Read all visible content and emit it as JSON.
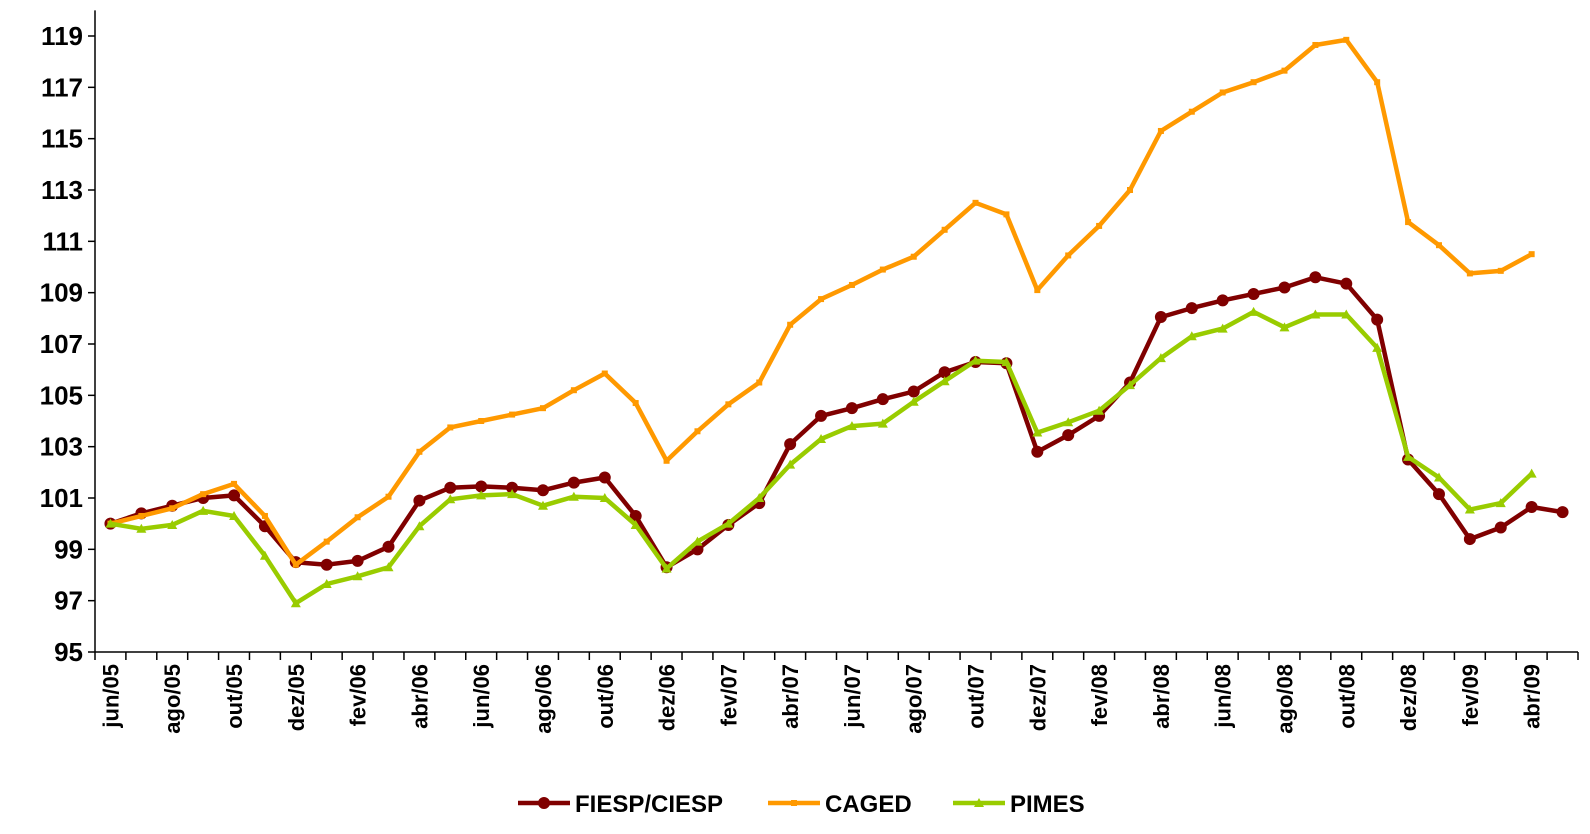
{
  "chart_data": {
    "type": "line",
    "categories": [
      "jun/05",
      null,
      "ago/05",
      null,
      "out/05",
      null,
      "dez/05",
      null,
      "fev/06",
      null,
      "abr/06",
      null,
      "jun/06",
      null,
      "ago/06",
      null,
      "out/06",
      null,
      "dez/06",
      null,
      "fev/07",
      null,
      "abr/07",
      null,
      "jun/07",
      null,
      "ago/07",
      null,
      "out/07",
      null,
      "dez/07",
      null,
      "fev/08",
      null,
      "abr/08",
      null,
      "jun/08",
      null,
      "ago/08",
      null,
      "out/08",
      null,
      "dez/08",
      null,
      "fev/09",
      null,
      "abr/09",
      null
    ],
    "series": [
      {
        "name": "FIESP/CIESP",
        "color": "#800000",
        "marker": "circle",
        "values": [
          100,
          100.4,
          100.7,
          101.0,
          101.1,
          99.9,
          98.5,
          98.4,
          98.55,
          99.1,
          100.9,
          101.4,
          101.45,
          101.4,
          101.3,
          101.6,
          101.8,
          100.3,
          98.3,
          99.0,
          99.95,
          100.8,
          103.1,
          104.2,
          104.5,
          104.85,
          105.15,
          105.9,
          106.3,
          106.25,
          102.8,
          103.45,
          104.2,
          105.5,
          108.05,
          108.4,
          108.7,
          108.95,
          109.2,
          109.6,
          109.35,
          107.95,
          102.5,
          101.15,
          99.4,
          99.85,
          100.65,
          100.45
        ]
      },
      {
        "name": "CAGED",
        "color": "#ff9900",
        "marker": "square",
        "values": [
          100,
          100.3,
          100.6,
          101.15,
          101.55,
          100.3,
          98.4,
          99.3,
          100.25,
          101.05,
          102.8,
          103.75,
          104.0,
          104.25,
          104.5,
          105.2,
          105.85,
          104.7,
          102.45,
          103.6,
          104.65,
          105.5,
          107.75,
          108.75,
          109.3,
          109.9,
          110.4,
          111.45,
          112.5,
          112.05,
          109.1,
          110.45,
          111.6,
          113.0,
          115.3,
          116.05,
          116.8,
          117.2,
          117.65,
          118.65,
          118.85,
          117.2,
          111.75,
          110.85,
          109.75,
          109.85,
          110.5,
          null
        ]
      },
      {
        "name": "PIMES",
        "color": "#99cc00",
        "marker": "triangle",
        "values": [
          100,
          99.8,
          99.95,
          100.5,
          100.3,
          98.75,
          96.9,
          97.65,
          97.95,
          98.3,
          99.9,
          100.95,
          101.1,
          101.15,
          100.7,
          101.05,
          101.0,
          99.95,
          98.25,
          99.3,
          100.0,
          101.0,
          102.3,
          103.3,
          103.8,
          103.9,
          104.75,
          105.55,
          106.35,
          106.3,
          103.55,
          103.95,
          104.4,
          105.4,
          106.45,
          107.3,
          107.6,
          108.25,
          107.65,
          108.15,
          108.15,
          106.85,
          102.6,
          101.8,
          100.55,
          100.8,
          101.95,
          null
        ]
      }
    ],
    "ylim": [
      95,
      120
    ],
    "yticks": [
      95,
      97,
      99,
      101,
      103,
      105,
      107,
      109,
      111,
      113,
      115,
      117,
      119
    ],
    "grid": false,
    "legend": "bottom"
  }
}
